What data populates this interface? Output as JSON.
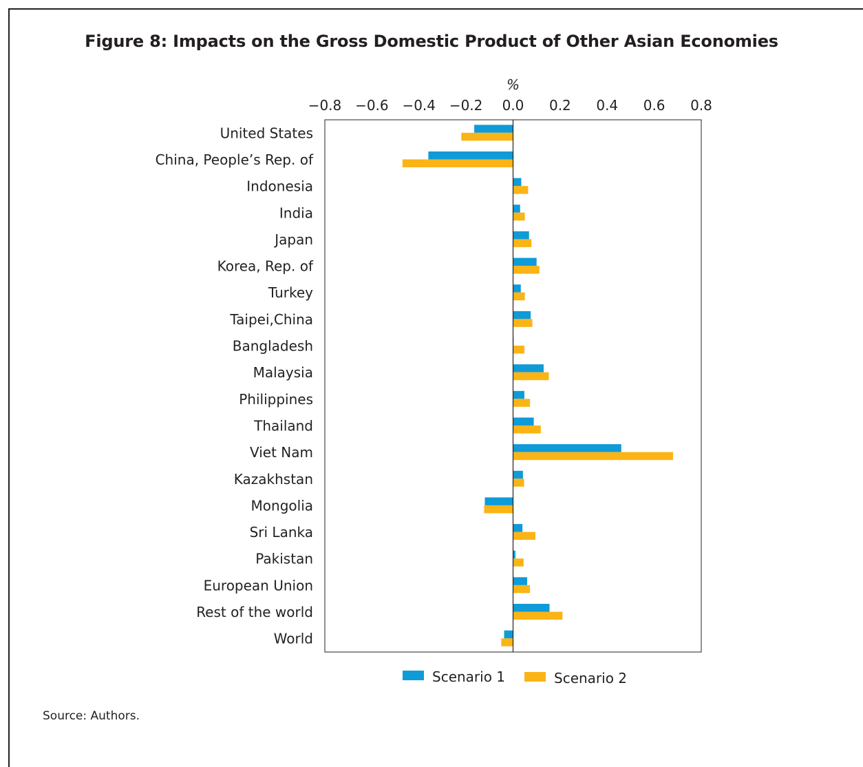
{
  "title": "Figure 8: Impacts on the Gross Domestic Product of Other Asian Economies",
  "source": "Source: Authors.",
  "colors": {
    "scenario1": "#0f9bd7",
    "scenario2": "#fbb415",
    "axis": "#231f20"
  },
  "chart_data": {
    "type": "bar",
    "orientation": "horizontal",
    "unit_label": "%",
    "xlim": [
      -0.8,
      0.8
    ],
    "xticks": [
      "−0.8",
      "−0.6",
      "−0.4",
      "−0.2",
      "0.0",
      "0.2",
      "0.4",
      "0.6",
      "0.8"
    ],
    "grid": false,
    "legend_position": "bottom",
    "categories": [
      "United States",
      "China, People’s Rep. of",
      "Indonesia",
      "India",
      "Japan",
      "Korea, Rep. of",
      "Turkey",
      "Taipei,China",
      "Bangladesh",
      "Malaysia",
      "Philippines",
      "Thailand",
      "Viet Nam",
      "Kazakhstan",
      "Mongolia",
      "Sri Lanka",
      "Pakistan",
      "European Union",
      "Rest of the world",
      "World"
    ],
    "series": [
      {
        "name": "Scenario 1",
        "values": [
          -0.165,
          -0.36,
          0.035,
          0.03,
          0.068,
          0.1,
          0.033,
          0.075,
          0.002,
          0.13,
          0.048,
          0.088,
          0.46,
          0.042,
          -0.12,
          0.04,
          0.01,
          0.06,
          0.155,
          -0.038
        ]
      },
      {
        "name": "Scenario 2",
        "values": [
          -0.22,
          -0.47,
          0.064,
          0.05,
          0.078,
          0.112,
          0.05,
          0.082,
          0.048,
          0.152,
          0.072,
          0.118,
          0.68,
          0.047,
          -0.123,
          0.095,
          0.045,
          0.072,
          0.21,
          -0.05
        ]
      }
    ]
  }
}
